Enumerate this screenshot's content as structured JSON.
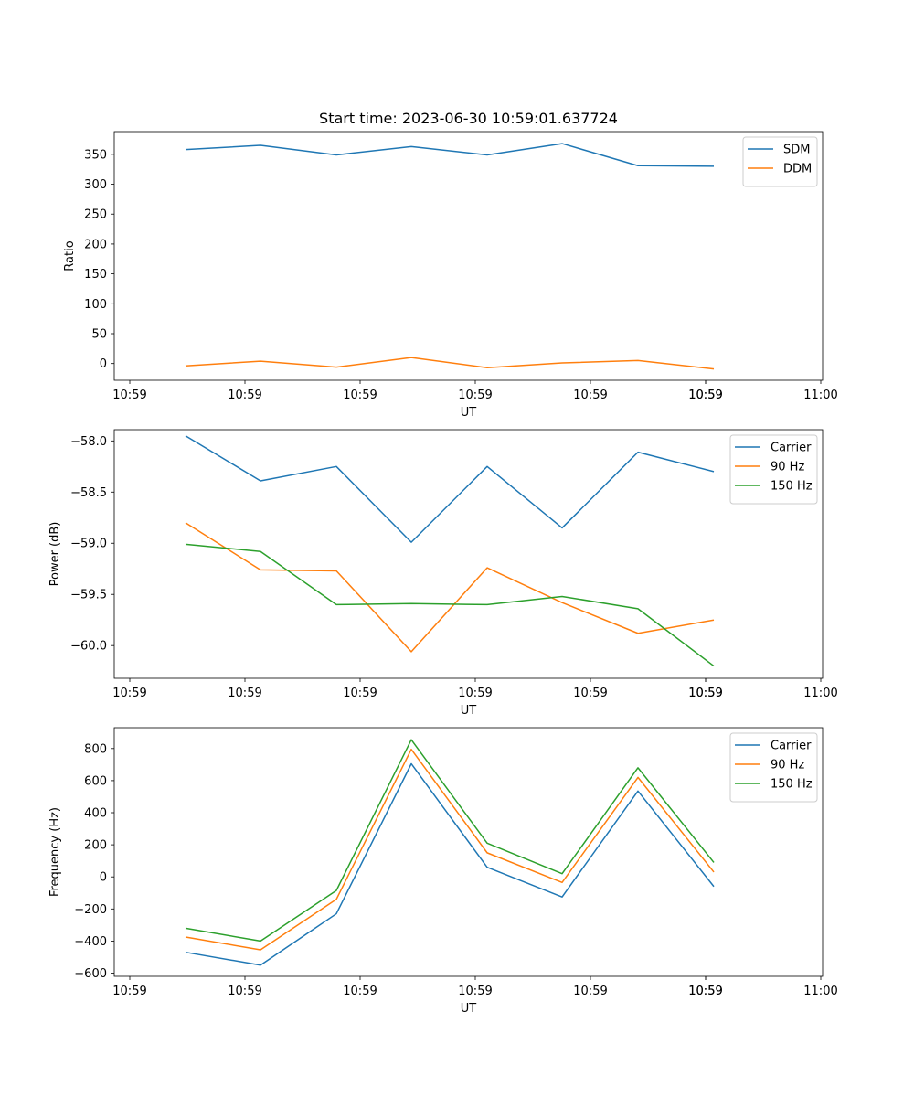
{
  "chart_data": [
    {
      "type": "line",
      "title": "Start time: 2023-06-30 10:59:01.637724",
      "xlabel": "UT",
      "ylabel": "Ratio",
      "x_tick_labels": [
        "10:59",
        "10:59",
        "10:59",
        "10:59",
        "10:59",
        "10:59",
        "10:59",
        "11:00"
      ],
      "y_ticks": [
        0,
        50,
        100,
        150,
        200,
        250,
        300,
        350
      ],
      "ylim": [
        -28,
        388
      ],
      "grid": false,
      "legend": "top-right",
      "series": [
        {
          "name": "SDM",
          "color": "#1f77b4",
          "values": [
            358,
            365,
            349,
            363,
            349,
            368,
            331,
            330
          ]
        },
        {
          "name": "DDM",
          "color": "#ff7f0e",
          "values": [
            -4,
            4,
            -6,
            10,
            -7,
            1,
            5,
            -9
          ]
        }
      ]
    },
    {
      "type": "line",
      "title": "",
      "xlabel": "UT",
      "ylabel": "Power (dB)",
      "x_tick_labels": [
        "10:59",
        "10:59",
        "10:59",
        "10:59",
        "10:59",
        "10:59",
        "10:59",
        "11:00"
      ],
      "y_ticks": [
        -60.0,
        -59.5,
        -59.0,
        -58.5,
        -58.0
      ],
      "y_tick_labels": [
        "−60.0",
        "−59.5",
        "−59.0",
        "−58.5",
        "−58.0"
      ],
      "ylim": [
        -60.32,
        -57.89
      ],
      "grid": false,
      "legend": "top-right",
      "series": [
        {
          "name": "Carrier",
          "color": "#1f77b4",
          "values": [
            -57.95,
            -58.39,
            -58.25,
            -58.99,
            -58.25,
            -58.85,
            -58.11,
            -58.3
          ]
        },
        {
          "name": "90 Hz",
          "color": "#ff7f0e",
          "values": [
            -58.8,
            -59.26,
            -59.27,
            -60.06,
            -59.24,
            -59.58,
            -59.88,
            -59.75
          ]
        },
        {
          "name": "150 Hz",
          "color": "#2ca02c",
          "values": [
            -59.01,
            -59.08,
            -59.6,
            -59.59,
            -59.6,
            -59.52,
            -59.64,
            -60.2
          ]
        }
      ]
    },
    {
      "type": "line",
      "title": "",
      "xlabel": "UT",
      "ylabel": "Frequency (Hz)",
      "x_tick_labels": [
        "10:59",
        "10:59",
        "10:59",
        "10:59",
        "10:59",
        "10:59",
        "10:59",
        "11:00"
      ],
      "y_ticks": [
        -600,
        -400,
        -200,
        0,
        200,
        400,
        600,
        800
      ],
      "y_tick_labels": [
        "−600",
        "−400",
        "−200",
        "0",
        "200",
        "400",
        "600",
        "800"
      ],
      "ylim": [
        -620,
        930
      ],
      "grid": false,
      "legend": "top-right",
      "series": [
        {
          "name": "Carrier",
          "color": "#1f77b4",
          "values": [
            -470,
            -550,
            -230,
            705,
            60,
            -125,
            535,
            -60
          ]
        },
        {
          "name": "90 Hz",
          "color": "#ff7f0e",
          "values": [
            -375,
            -455,
            -140,
            795,
            150,
            -35,
            620,
            30
          ]
        },
        {
          "name": "150 Hz",
          "color": "#2ca02c",
          "values": [
            -320,
            -400,
            -85,
            855,
            210,
            20,
            680,
            90
          ]
        }
      ]
    }
  ]
}
